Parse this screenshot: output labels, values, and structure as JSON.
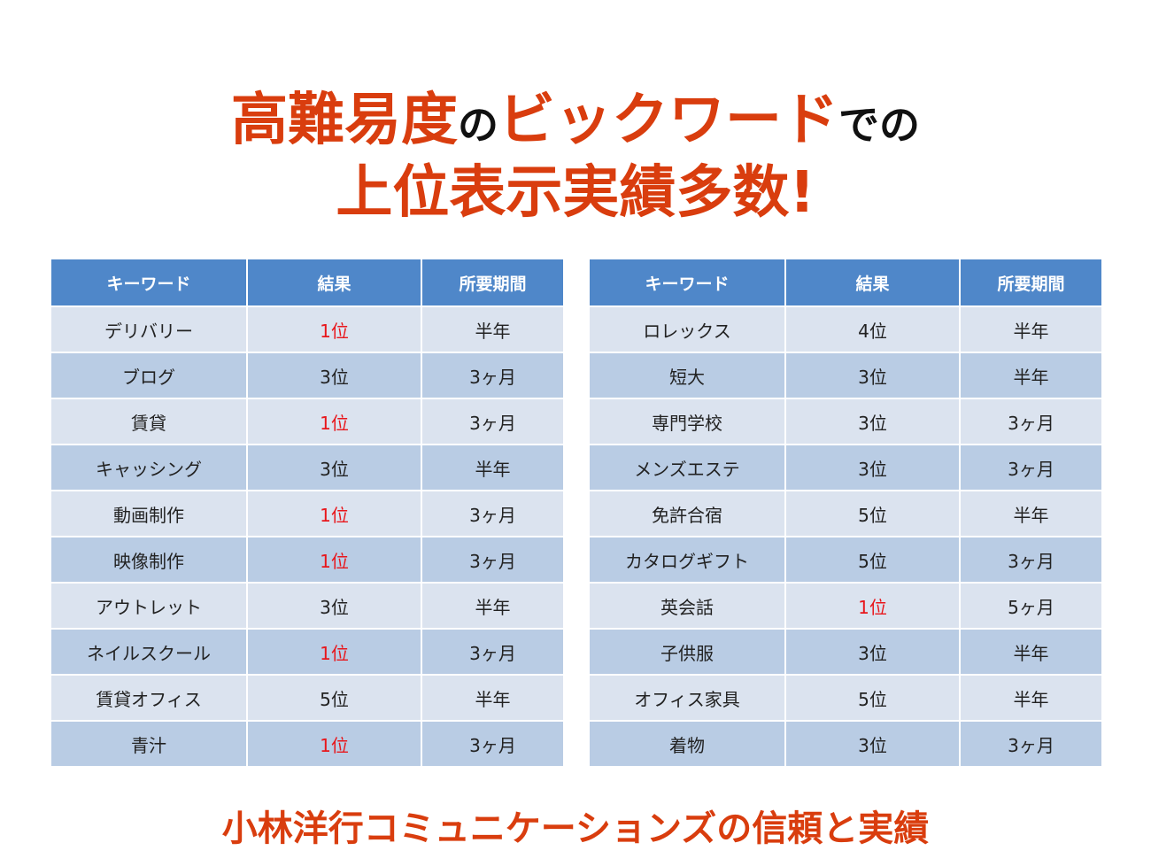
{
  "headline": {
    "line1_part1": "高難易度",
    "line1_part2": "の",
    "line1_part3": "ビックワード",
    "line1_part4": "での",
    "line2": "上位表示実績多数!"
  },
  "table_headers": [
    "キーワード",
    "結果",
    "所要期間"
  ],
  "left_table": [
    {
      "keyword": "デリバリー",
      "result": "1位",
      "period": "半年"
    },
    {
      "keyword": "ブログ",
      "result": "3位",
      "period": "3ヶ月"
    },
    {
      "keyword": "賃貸",
      "result": "1位",
      "period": "3ヶ月"
    },
    {
      "keyword": "キャッシング",
      "result": "3位",
      "period": "半年"
    },
    {
      "keyword": "動画制作",
      "result": "1位",
      "period": "3ヶ月"
    },
    {
      "keyword": "映像制作",
      "result": "1位",
      "period": "3ヶ月"
    },
    {
      "keyword": "アウトレット",
      "result": "3位",
      "period": "半年"
    },
    {
      "keyword": "ネイルスクール",
      "result": "1位",
      "period": "3ヶ月"
    },
    {
      "keyword": "賃貸オフィス",
      "result": "5位",
      "period": "半年"
    },
    {
      "keyword": "青汁",
      "result": "1位",
      "period": "3ヶ月"
    }
  ],
  "right_table": [
    {
      "keyword": "ロレックス",
      "result": "4位",
      "period": "半年"
    },
    {
      "keyword": "短大",
      "result": "3位",
      "period": "半年"
    },
    {
      "keyword": "専門学校",
      "result": "3位",
      "period": "3ヶ月"
    },
    {
      "keyword": "メンズエステ",
      "result": "3位",
      "period": "3ヶ月"
    },
    {
      "keyword": "免許合宿",
      "result": "5位",
      "period": "半年"
    },
    {
      "keyword": "カタログギフト",
      "result": "5位",
      "period": "3ヶ月"
    },
    {
      "keyword": "英会話",
      "result": "1位",
      "period": "5ヶ月"
    },
    {
      "keyword": "子供服",
      "result": "3位",
      "period": "半年"
    },
    {
      "keyword": "オフィス家具",
      "result": "5位",
      "period": "半年"
    },
    {
      "keyword": "着物",
      "result": "3位",
      "period": "3ヶ月"
    }
  ],
  "footer": "小林洋行コミュニケーションズの信頼と実績",
  "colors": {
    "accent_orange": "#d93d0e",
    "header_blue": "#4f87c9",
    "row_light": "#dbe3ef",
    "row_dark": "#b9cce4",
    "first_place_red": "#e8161b"
  }
}
